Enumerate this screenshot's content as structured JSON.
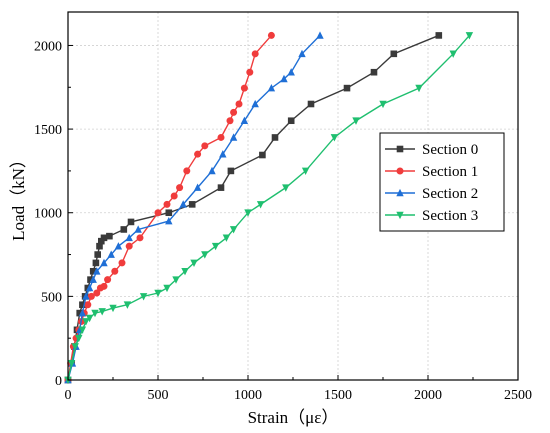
{
  "chart_data": {
    "type": "line",
    "xlabel": "Strain（με）",
    "ylabel": "Load（kN）",
    "xlim": [
      0,
      2500
    ],
    "ylim": [
      0,
      2200
    ],
    "xticks": [
      0,
      500,
      1000,
      1500,
      2000,
      2500
    ],
    "yticks": [
      0,
      500,
      1000,
      1500,
      2000
    ],
    "grid": true,
    "legend_position": "right",
    "series": [
      {
        "name": "Section 0",
        "color": "#3a3a3a",
        "marker": "square",
        "x": [
          0,
          20,
          35,
          50,
          65,
          80,
          95,
          110,
          125,
          140,
          155,
          165,
          175,
          185,
          200,
          230,
          310,
          350,
          560,
          690,
          850,
          905,
          1080,
          1150,
          1240,
          1350,
          1550,
          1700,
          1810,
          2060
        ],
        "y": [
          0,
          100,
          200,
          300,
          400,
          450,
          500,
          550,
          600,
          650,
          700,
          750,
          800,
          830,
          850,
          860,
          900,
          945,
          1000,
          1050,
          1150,
          1250,
          1345,
          1450,
          1550,
          1650,
          1745,
          1840,
          1950,
          2060
        ]
      },
      {
        "name": "Section 1",
        "color": "#f03c3c",
        "marker": "circle",
        "x": [
          0,
          15,
          30,
          45,
          60,
          75,
          90,
          110,
          130,
          160,
          180,
          200,
          220,
          260,
          300,
          340,
          400,
          500,
          550,
          590,
          620,
          660,
          720,
          760,
          850,
          900,
          920,
          950,
          980,
          1010,
          1040,
          1130
        ],
        "y": [
          0,
          100,
          200,
          250,
          300,
          350,
          400,
          450,
          500,
          520,
          550,
          560,
          600,
          650,
          700,
          800,
          850,
          1000,
          1050,
          1100,
          1150,
          1250,
          1350,
          1400,
          1450,
          1550,
          1600,
          1650,
          1745,
          1840,
          1950,
          2060
        ]
      },
      {
        "name": "Section 2",
        "color": "#1f6fd6",
        "marker": "triangle-up",
        "x": [
          0,
          25,
          45,
          65,
          80,
          100,
          120,
          140,
          160,
          200,
          240,
          280,
          340,
          390,
          560,
          640,
          720,
          800,
          860,
          920,
          980,
          1040,
          1130,
          1200,
          1240,
          1300,
          1400
        ],
        "y": [
          0,
          100,
          200,
          300,
          400,
          500,
          550,
          600,
          650,
          700,
          750,
          800,
          850,
          900,
          950,
          1050,
          1150,
          1250,
          1350,
          1450,
          1550,
          1650,
          1745,
          1800,
          1840,
          1950,
          2060
        ]
      },
      {
        "name": "Section 3",
        "color": "#1fbf6f",
        "marker": "triangle-down",
        "x": [
          0,
          20,
          40,
          60,
          80,
          100,
          120,
          150,
          190,
          250,
          330,
          420,
          500,
          550,
          600,
          650,
          700,
          760,
          820,
          880,
          920,
          1000,
          1070,
          1210,
          1320,
          1480,
          1600,
          1750,
          1950,
          2140,
          2230
        ],
        "y": [
          0,
          100,
          200,
          250,
          300,
          350,
          370,
          400,
          410,
          430,
          450,
          500,
          520,
          550,
          600,
          650,
          700,
          750,
          800,
          850,
          900,
          1000,
          1050,
          1150,
          1250,
          1450,
          1550,
          1650,
          1745,
          1950,
          2060
        ]
      }
    ]
  }
}
